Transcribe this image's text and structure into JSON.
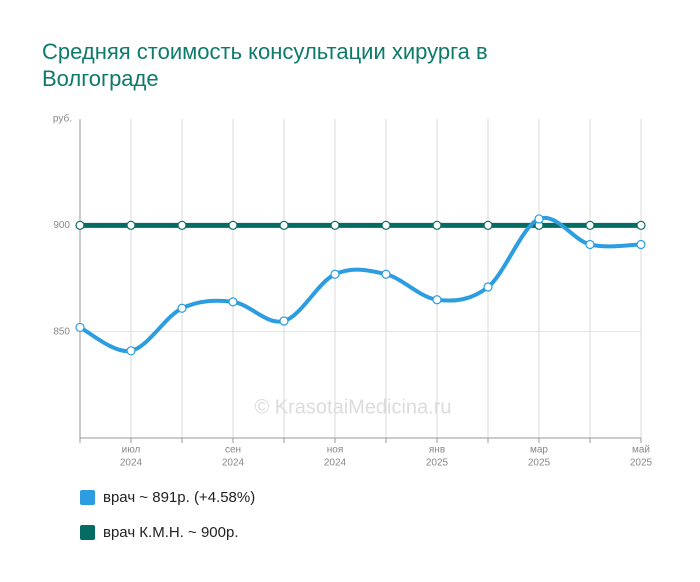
{
  "chart_data": {
    "type": "line",
    "title": "Средняя стоимость консультации хирурга в Волгограде",
    "y_unit": "руб.",
    "watermark": "© KrasotaiMedicina.ru",
    "categories": [
      null,
      {
        "month": "июл",
        "year": "2024"
      },
      null,
      {
        "month": "сен",
        "year": "2024"
      },
      null,
      {
        "month": "ноя",
        "year": "2024"
      },
      null,
      {
        "month": "янв",
        "year": "2025"
      },
      null,
      {
        "month": "мар",
        "year": "2025"
      },
      null,
      {
        "month": "май",
        "year": "2025"
      }
    ],
    "series": [
      {
        "name": "врач ~ 891р. (+4.58%)",
        "color": "#2b9de0",
        "values": [
          852,
          841,
          861,
          864,
          855,
          877,
          877,
          865,
          871,
          903,
          891,
          891
        ]
      },
      {
        "name": "врач К.М.Н. ~ 900р.",
        "color": "#046c62",
        "values": [
          900,
          900,
          900,
          900,
          900,
          900,
          900,
          900,
          900,
          900,
          900,
          900
        ]
      }
    ],
    "ylim": [
      800,
      950
    ],
    "yticks": [
      850,
      900
    ],
    "grid": true
  }
}
